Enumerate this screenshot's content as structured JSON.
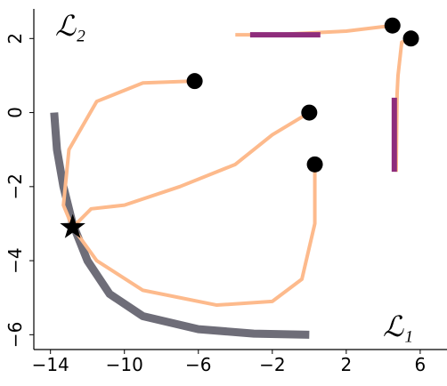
{
  "chart_data": {
    "type": "line",
    "x_label": "ℒ₁",
    "y_label": "ℒ₂",
    "xlim": [
      -14.9,
      7.45
    ],
    "ylim": [
      -6.4,
      2.8
    ],
    "xticks": [
      {
        "value": -14,
        "label": "−14"
      },
      {
        "value": -10,
        "label": "−10"
      },
      {
        "value": -6,
        "label": "−6"
      },
      {
        "value": -2,
        "label": "−2"
      },
      2,
      6
    ],
    "yticks": [
      {
        "value": -6,
        "label": "−6"
      },
      {
        "value": -4,
        "label": "−4"
      },
      {
        "value": -2,
        "label": "−2"
      },
      0,
      2
    ],
    "series": [
      {
        "color": "#6e6d78",
        "width": 9,
        "x": [
          -13.8,
          -13.65,
          -13.3,
          -12.8,
          -12.0,
          -10.8,
          -9.0,
          -6.0,
          -3.0,
          0.0
        ],
        "values": [
          0.0,
          -1.0,
          -2.0,
          -3.0,
          -4.0,
          -4.9,
          -5.5,
          -5.85,
          -5.97,
          -6.0
        ]
      },
      {
        "color": "#fdba8c",
        "width": 4,
        "x": [
          -6.2,
          -9.0,
          -11.5,
          -13.0,
          -13.3,
          -12.8
        ],
        "values": [
          0.85,
          0.8,
          0.3,
          -1.0,
          -2.5,
          -3.1
        ]
      },
      {
        "color": "#fdba8c",
        "width": 4,
        "x": [
          0.0,
          -2.0,
          -4.0,
          -7.0,
          -10.0,
          -11.8,
          -12.8
        ],
        "values": [
          0.0,
          -0.6,
          -1.4,
          -2.0,
          -2.5,
          -2.6,
          -3.1
        ]
      },
      {
        "color": "#fdba8c",
        "width": 4,
        "x": [
          0.3,
          0.3,
          -0.4,
          -2.0,
          -5.0,
          -9.0,
          -11.5,
          -12.8
        ],
        "values": [
          -1.4,
          -3.0,
          -4.5,
          -5.1,
          -5.2,
          -4.8,
          -4.0,
          -3.1
        ]
      },
      {
        "color": "#fdba8c",
        "width": 4,
        "x": [
          4.5,
          2.0,
          -2.0,
          -4.0
        ],
        "values": [
          2.35,
          2.2,
          2.1,
          2.1
        ]
      },
      {
        "color": "#8e2d7c",
        "width": 6,
        "x": [
          -3.2,
          -1.8,
          -0.2,
          0.6
        ],
        "values": [
          2.1,
          2.1,
          2.1,
          2.1
        ]
      },
      {
        "color": "#fdba8c",
        "width": 4,
        "x": [
          5.5,
          5.0,
          4.8,
          4.75,
          4.7
        ],
        "values": [
          2.0,
          1.9,
          1.0,
          0.5,
          -1.6
        ]
      },
      {
        "color": "#8e2d7c",
        "width": 6,
        "x": [
          4.6,
          4.6,
          4.6
        ],
        "values": [
          0.4,
          -0.6,
          -1.6
        ]
      },
      {
        "color": "#000000",
        "marker": "circle",
        "x": [
          -6.2,
          0.0,
          0.3,
          4.5,
          5.5
        ],
        "values": [
          0.85,
          0.0,
          -1.4,
          2.35,
          2.0
        ]
      },
      {
        "color": "#000000",
        "marker": "star",
        "x": [
          -12.8
        ],
        "values": [
          -3.1
        ]
      }
    ]
  }
}
